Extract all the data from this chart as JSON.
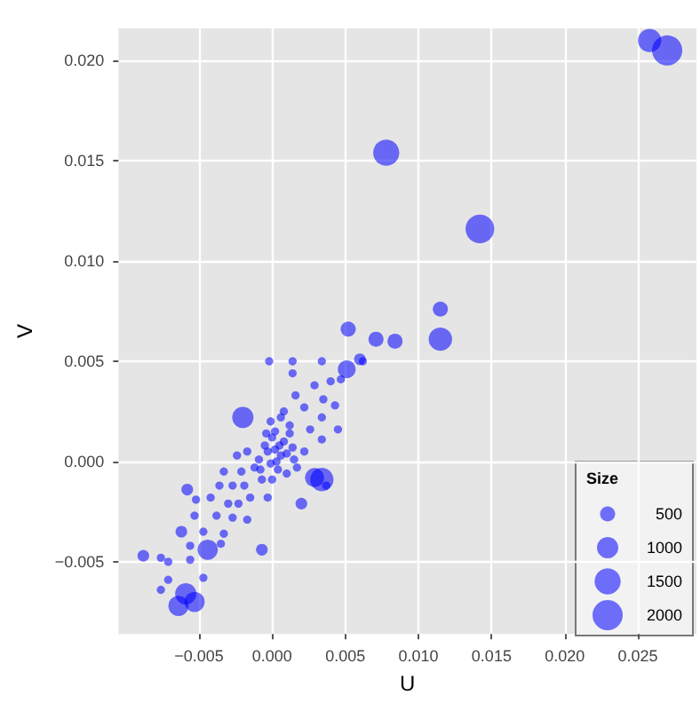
{
  "chart_data": {
    "type": "bubble",
    "xlabel": "U",
    "ylabel": "V",
    "legend_title": "Size",
    "grid": true,
    "xlim": [
      -0.0105,
      0.029
    ],
    "ylim": [
      -0.0086,
      0.0216
    ],
    "xticks": [
      {
        "value": -0.005,
        "label": "−0.005"
      },
      {
        "value": 0,
        "label": "0.000"
      },
      {
        "value": 0.005,
        "label": "0.005"
      },
      {
        "value": 0.01,
        "label": "0.010"
      },
      {
        "value": 0.015,
        "label": "0.015"
      },
      {
        "value": 0.02,
        "label": "0.020"
      },
      {
        "value": 0.025,
        "label": "0.025"
      }
    ],
    "yticks": [
      {
        "value": -0.005,
        "label": "−0.005"
      },
      {
        "value": 0,
        "label": "0.000"
      },
      {
        "value": 0.005,
        "label": "0.005"
      },
      {
        "value": 0.01,
        "label": "0.010"
      },
      {
        "value": 0.015,
        "label": "0.015"
      },
      {
        "value": 0.02,
        "label": "0.020"
      }
    ],
    "size_legend": [
      500,
      1000,
      1500,
      2000
    ],
    "series": [
      {
        "color": "#0000ff",
        "x": [
          0.0258,
          0.027,
          0.0078,
          0.0142,
          0.0115,
          0.0115,
          0.0052,
          0.0071,
          0.0084,
          0.0062,
          -0.0002,
          0.0014,
          0.0034,
          0.0051,
          0.006,
          0.0014,
          0.0029,
          0.004,
          0.0047,
          -0.002,
          -0.0001,
          0.0008,
          0.0022,
          0.0016,
          0.0035,
          0.0043,
          0.0034,
          0.0026,
          0.0045,
          0.0034,
          0.0012,
          0.0,
          0.0005,
          -0.0003,
          0.0006,
          -0.0001,
          -0.0009,
          -0.0017,
          -0.0012,
          -0.0021,
          -0.0024,
          -0.0033,
          -0.0036,
          -0.0027,
          -0.0019,
          -0.0007,
          0.0,
          0.001,
          0.0017,
          0.0014,
          0.0022,
          0.0029,
          0.0034,
          0.0037,
          0.002,
          -0.0003,
          -0.0015,
          -0.0023,
          -0.003,
          -0.0042,
          -0.0052,
          -0.0058,
          -0.0053,
          -0.0038,
          -0.0027,
          -0.0017,
          -0.0062,
          -0.0047,
          -0.0033,
          -0.0056,
          -0.0044,
          -0.0035,
          -0.0007,
          -0.0088,
          -0.0076,
          -0.0071,
          -0.0056,
          -0.0047,
          -0.0071,
          -0.0076,
          -0.0059,
          -0.0053,
          -0.0064,
          0.0002,
          0.0008,
          -0.0005,
          0.0003,
          0.001,
          -0.0008,
          0.0004,
          0.0012,
          0.0006,
          -0.0004,
          0.0015,
          0.0002
        ],
        "values": [
          0.021,
          0.0205,
          0.0154,
          0.0116,
          0.0076,
          0.0061,
          0.0066,
          0.0061,
          0.006,
          0.005,
          0.005,
          0.005,
          0.005,
          0.0046,
          0.0051,
          0.0044,
          0.0038,
          0.004,
          0.0041,
          0.0022,
          0.002,
          0.0025,
          0.0027,
          0.0033,
          0.0031,
          0.0028,
          0.0022,
          0.0016,
          0.0016,
          0.0011,
          0.0014,
          0.0012,
          0.0008,
          0.0005,
          0.0003,
          -0.0001,
          0.0001,
          0.0005,
          -0.0003,
          -0.0005,
          0.0003,
          -0.0005,
          -0.0012,
          -0.0012,
          -0.0012,
          -0.0009,
          -0.0009,
          -0.0006,
          -0.0003,
          0.0007,
          0.0005,
          -0.0008,
          -0.0009,
          -0.0012,
          -0.0021,
          -0.0018,
          -0.0018,
          -0.0021,
          -0.0021,
          -0.0018,
          -0.0019,
          -0.0014,
          -0.0027,
          -0.0027,
          -0.0028,
          -0.0029,
          -0.0035,
          -0.0035,
          -0.0036,
          -0.0042,
          -0.0044,
          -0.0041,
          -0.0044,
          -0.0047,
          -0.0048,
          -0.005,
          -0.0049,
          -0.0058,
          -0.0059,
          -0.0064,
          -0.0066,
          -0.007,
          -0.0072,
          0.0015,
          0.001,
          0.0008,
          0.0,
          0.0004,
          -0.0004,
          -0.0004,
          0.0018,
          0.0022,
          0.0014,
          0.0001,
          0.0006
        ],
        "sizes": [
          1200,
          2000,
          1500,
          1800,
          500,
          1200,
          500,
          500,
          500,
          150,
          150,
          150,
          150,
          700,
          300,
          150,
          150,
          150,
          150,
          1000,
          150,
          150,
          150,
          150,
          150,
          150,
          150,
          150,
          150,
          150,
          150,
          150,
          150,
          150,
          150,
          150,
          150,
          150,
          150,
          150,
          150,
          150,
          150,
          150,
          150,
          150,
          150,
          150,
          150,
          150,
          150,
          800,
          1200,
          150,
          300,
          150,
          150,
          150,
          150,
          150,
          150,
          300,
          150,
          150,
          150,
          150,
          300,
          150,
          150,
          150,
          900,
          150,
          300,
          300,
          150,
          150,
          150,
          150,
          150,
          150,
          1000,
          900,
          900,
          150,
          150,
          150,
          150,
          150,
          150,
          150,
          150,
          150,
          150,
          150,
          150
        ]
      }
    ]
  }
}
